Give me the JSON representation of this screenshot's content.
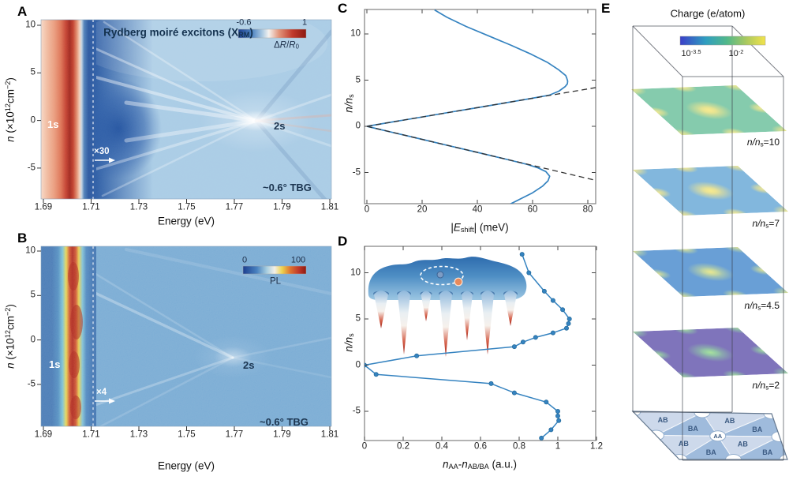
{
  "figure": {
    "panel_labels": {
      "A": "A",
      "B": "B",
      "C": "C",
      "D": "D",
      "E": "E"
    },
    "panelA": {
      "title_runs": [
        [
          "Rydberg moiré excitons (X",
          ""
        ],
        [
          "RM",
          "sub"
        ],
        [
          ")",
          ""
        ]
      ],
      "colorbar": {
        "min": "-0.6",
        "max": "1",
        "label_runs": [
          [
            "Δ",
            ""
          ],
          [
            "R",
            "i"
          ],
          [
            "/",
            ""
          ],
          [
            "R",
            "i"
          ],
          [
            "0",
            "sub"
          ]
        ]
      },
      "peak1": "1s",
      "peak2": "2s",
      "magnify": "×30",
      "sample": "~0.6° TBG",
      "xlabel": "Energy (eV)",
      "ylabel_runs": [
        [
          "n",
          "i"
        ],
        [
          " (×10",
          ""
        ],
        [
          "12",
          "sup"
        ],
        [
          "cm",
          ""
        ],
        [
          "−2",
          "sup"
        ],
        [
          ")",
          ""
        ]
      ],
      "xticks": [
        "1.69",
        "1.71",
        "1.73",
        "1.75",
        "1.77",
        "1.79",
        "1.81"
      ],
      "yticks": [
        "10",
        "5",
        "0",
        "-5"
      ]
    },
    "panelB": {
      "colorbar": {
        "min": "0",
        "max": "100",
        "label": "PL"
      },
      "peak1": "1s",
      "peak2": "2s",
      "magnify": "×4",
      "sample": "~0.6° TBG",
      "xlabel": "Energy (eV)",
      "ylabel_runs": [
        [
          "n",
          "i"
        ],
        [
          " (×10",
          ""
        ],
        [
          "12",
          "sup"
        ],
        [
          "cm",
          ""
        ],
        [
          "−2",
          "sup"
        ],
        [
          ")",
          ""
        ]
      ],
      "xticks": [
        "1.69",
        "1.71",
        "1.73",
        "1.75",
        "1.77",
        "1.79",
        "1.81"
      ],
      "yticks": [
        "10",
        "5",
        "0",
        "-5"
      ]
    },
    "panelC": {
      "ylabel_runs": [
        [
          "n/n",
          "i"
        ],
        [
          "s",
          "sub"
        ]
      ],
      "xlabel_runs": [
        [
          "|",
          ""
        ],
        [
          "E",
          "i"
        ],
        [
          "shift",
          "sub"
        ],
        [
          "| (meV)",
          ""
        ]
      ],
      "xticks": [
        "0",
        "20",
        "40",
        "60",
        "80"
      ],
      "yticks": [
        "10",
        "5",
        "0",
        "-5"
      ]
    },
    "panelD": {
      "ylabel_runs": [
        [
          "n/n",
          "i"
        ],
        [
          "s",
          "sub"
        ]
      ],
      "xlabel_runs": [
        [
          "n",
          "i"
        ],
        [
          "AA",
          "sub"
        ],
        [
          "-",
          ""
        ],
        [
          "n",
          "i"
        ],
        [
          "AB/BA",
          "sub"
        ],
        [
          " (a.u.)",
          ""
        ]
      ],
      "xticks": [
        "0",
        "0.2",
        "0.4",
        "0.6",
        "0.8",
        "1",
        "1.2"
      ],
      "yticks": [
        "10",
        "5",
        "0",
        "-5"
      ]
    },
    "panelE": {
      "title": "Charge (e/atom)",
      "cbar_min_runs": [
        [
          "10",
          ""
        ],
        [
          "-3.5",
          "sup"
        ]
      ],
      "cbar_max_runs": [
        [
          "10",
          ""
        ],
        [
          "-2",
          "sup"
        ]
      ],
      "layer_labels": [
        [
          [
            "n/n",
            "i"
          ],
          [
            "s",
            "sub"
          ],
          [
            "=10",
            ""
          ]
        ],
        [
          [
            "n/n",
            "i"
          ],
          [
            "s",
            "sub"
          ],
          [
            "=7",
            ""
          ]
        ],
        [
          [
            "n/n",
            "i"
          ],
          [
            "s",
            "sub"
          ],
          [
            "=4.5",
            ""
          ]
        ],
        [
          [
            "n/n",
            "i"
          ],
          [
            "s",
            "sub"
          ],
          [
            "=2",
            ""
          ]
        ]
      ],
      "site_labels": {
        "AA": "AA",
        "AB": "AB",
        "BA": "BA"
      }
    }
  },
  "chart_data": [
    {
      "panel": "A",
      "type": "heatmap",
      "title": "Rydberg moiré excitons (X_RM)",
      "xlabel": "Energy (eV)",
      "ylabel": "n (×10^12 cm^-2)",
      "xlim": [
        1.69,
        1.81
      ],
      "ylim": [
        -8.2,
        10.6
      ],
      "colorbar": {
        "label": "ΔR/R0",
        "range": [
          -0.6,
          1
        ]
      },
      "annotations": [
        "1s resonance band near 1.70 eV",
        "2s resonance fan converging near 1.78 eV at n=0",
        "region right of 1.71 eV magnified ×30",
        "sample ~0.6° TBG"
      ]
    },
    {
      "panel": "B",
      "type": "heatmap",
      "xlabel": "Energy (eV)",
      "ylabel": "n (×10^12 cm^-2)",
      "xlim": [
        1.69,
        1.81
      ],
      "ylim": [
        -9.7,
        10.5
      ],
      "colorbar": {
        "label": "PL",
        "range": [
          0,
          100
        ]
      },
      "annotations": [
        "1s emission band near 1.70 eV",
        "2s feature near 1.78 eV at n=0",
        "region right of 1.71 eV magnified ×4",
        "sample ~0.6° TBG"
      ]
    },
    {
      "panel": "C",
      "type": "line",
      "xlabel": "|E_shift| (meV)",
      "ylabel": "n/n_s",
      "xlim": [
        0,
        85
      ],
      "ylim": [
        -8.4,
        12.6
      ],
      "legend": false,
      "series": [
        {
          "name": "upper_branch",
          "style": "solid",
          "color": "#3583c0",
          "points": [
            [
              0,
              0
            ],
            [
              10,
              0.51
            ],
            [
              20,
              1.01
            ],
            [
              30,
              1.52
            ],
            [
              40,
              2.02
            ],
            [
              50,
              2.53
            ],
            [
              60,
              3.04
            ],
            [
              66,
              3.37
            ],
            [
              69.5,
              3.8
            ],
            [
              71.8,
              4.3
            ],
            [
              72.6,
              4.6
            ],
            [
              72.7,
              4.9
            ],
            [
              72.4,
              5.2
            ],
            [
              72,
              5.5
            ],
            [
              69.5,
              6.1
            ],
            [
              65.5,
              6.9
            ],
            [
              59.5,
              7.8
            ],
            [
              52,
              8.8
            ],
            [
              44,
              9.8
            ],
            [
              36,
              10.8
            ],
            [
              29,
              11.8
            ],
            [
              24.5,
              12.6
            ]
          ]
        },
        {
          "name": "lower_branch",
          "style": "solid",
          "color": "#3583c0",
          "points": [
            [
              0,
              0
            ],
            [
              10,
              -0.71
            ],
            [
              20,
              -1.41
            ],
            [
              30,
              -2.12
            ],
            [
              40,
              -2.82
            ],
            [
              50,
              -3.53
            ],
            [
              58,
              -4.12
            ],
            [
              62,
              -4.5
            ],
            [
              64.8,
              -4.9
            ],
            [
              66.2,
              -5.4
            ],
            [
              65.6,
              -5.9
            ],
            [
              63.5,
              -6.5
            ],
            [
              60,
              -7.2
            ],
            [
              56,
              -7.8
            ],
            [
              52,
              -8.4
            ]
          ]
        },
        {
          "name": "linear_fit_upper",
          "style": "dashed",
          "color": "#333333",
          "points": [
            [
              0,
              0
            ],
            [
              85,
              4.3
            ]
          ]
        },
        {
          "name": "linear_fit_lower",
          "style": "dashed",
          "color": "#333333",
          "points": [
            [
              0,
              0
            ],
            [
              85,
              -6.0
            ]
          ]
        }
      ]
    },
    {
      "panel": "D",
      "type": "scatter-line",
      "xlabel": "n_AA-n_AB/BA (a.u.)",
      "ylabel": "n/n_s",
      "xlim": [
        0,
        1.2
      ],
      "ylim": [
        -8.2,
        12.9
      ],
      "color": "#3583c0",
      "points": [
        [
          0.815,
          12
        ],
        [
          0.85,
          10
        ],
        [
          0.93,
          8
        ],
        [
          0.975,
          7
        ],
        [
          1.025,
          6
        ],
        [
          1.06,
          5
        ],
        [
          1.055,
          4.5
        ],
        [
          1.045,
          4
        ],
        [
          0.975,
          3.5
        ],
        [
          0.885,
          3
        ],
        [
          0.82,
          2.5
        ],
        [
          0.775,
          2
        ],
        [
          0.27,
          1
        ],
        [
          0,
          0
        ],
        [
          0.06,
          -1
        ],
        [
          0.655,
          -2
        ],
        [
          0.775,
          -3
        ],
        [
          0.94,
          -4
        ],
        [
          1.0,
          -5
        ],
        [
          1.0,
          -5.5
        ],
        [
          1.005,
          -6
        ],
        [
          0.965,
          -7
        ],
        [
          0.915,
          -7.9
        ]
      ],
      "inset": "moiré potential surface with deep wells (red tips) and exciton orbit (dashed ellipse, electron and hole dots)"
    },
    {
      "panel": "E",
      "type": "heatmap-stack",
      "title": "Charge (e/atom)",
      "colorbar": {
        "scale": "log",
        "min": "10^-3.5",
        "max": "10^-2"
      },
      "layers": [
        "n/n_s=10",
        "n/n_s=7",
        "n/n_s=4.5",
        "n/n_s=2"
      ],
      "base_pattern": [
        "AB",
        "BA",
        "AA moiré domain map"
      ]
    }
  ]
}
